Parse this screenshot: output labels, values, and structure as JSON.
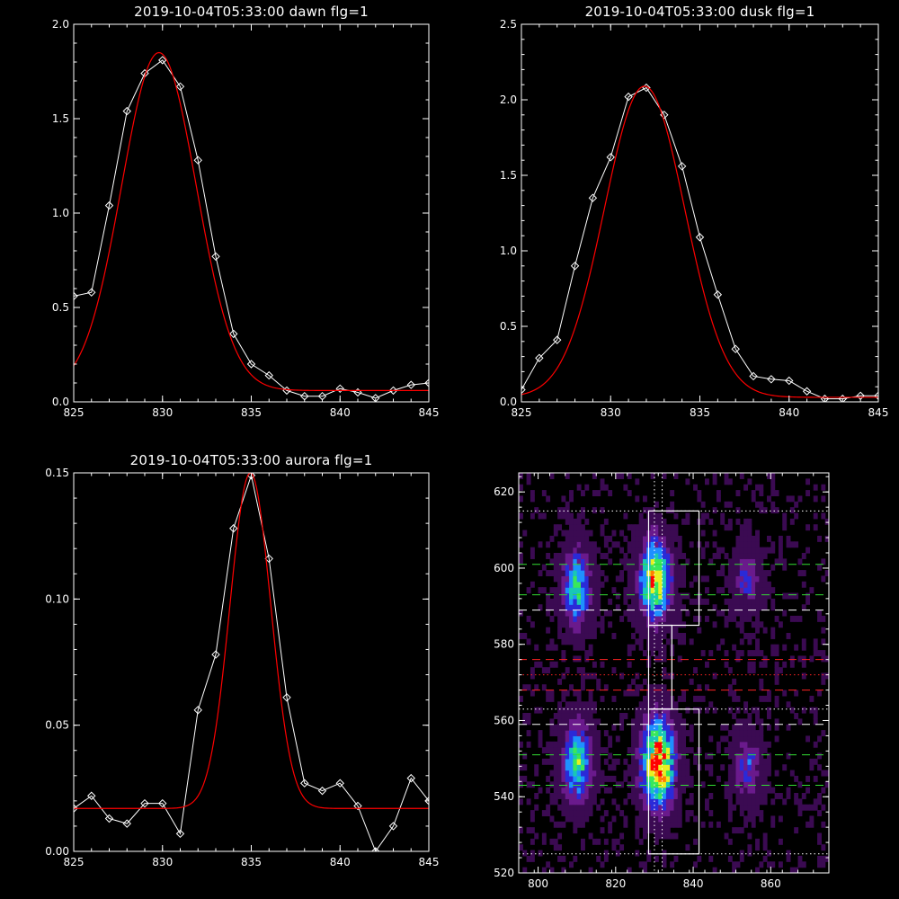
{
  "chart_data": [
    {
      "type": "line",
      "title": "2019-10-04T05:33:00 dawn flg=1",
      "xlim": [
        825,
        845
      ],
      "ylim": [
        0,
        2.0
      ],
      "xticks": [
        "825",
        "830",
        "835",
        "840",
        "845"
      ],
      "yticks": [
        "0.0",
        "0.5",
        "1.0",
        "1.5",
        "2.0"
      ],
      "series": [
        {
          "color": "#ffffff",
          "marker": "diamond",
          "x": [
            825,
            826,
            827,
            828,
            829,
            830,
            831,
            832,
            833,
            834,
            835,
            836,
            837,
            838,
            839,
            840,
            841,
            842,
            843,
            844,
            845
          ],
          "y": [
            0.56,
            0.58,
            1.04,
            1.54,
            1.74,
            1.81,
            1.67,
            1.28,
            0.77,
            0.36,
            0.2,
            0.14,
            0.06,
            0.03,
            0.03,
            0.07,
            0.05,
            0.02,
            0.06,
            0.09,
            0.1
          ]
        },
        {
          "color": "#ff0000",
          "fit": "gauss",
          "params": {
            "amp": 1.79,
            "center": 829.8,
            "sigma": 2.1,
            "offset": 0.06
          },
          "x_range": [
            825,
            845
          ]
        }
      ]
    },
    {
      "type": "line",
      "title": "2019-10-04T05:33:00 dusk flg=1",
      "xlim": [
        825,
        845
      ],
      "ylim": [
        0,
        2.5
      ],
      "xticks": [
        "825",
        "830",
        "835",
        "840",
        "845"
      ],
      "yticks": [
        "0.0",
        "0.5",
        "1.0",
        "1.5",
        "2.0",
        "2.5"
      ],
      "series": [
        {
          "color": "#ffffff",
          "marker": "diamond",
          "x": [
            825,
            826,
            827,
            828,
            829,
            830,
            831,
            832,
            833,
            834,
            835,
            836,
            837,
            838,
            839,
            840,
            841,
            842,
            843,
            844,
            845
          ],
          "y": [
            0.08,
            0.29,
            0.41,
            0.9,
            1.35,
            1.62,
            2.02,
            2.08,
            1.9,
            1.56,
            1.09,
            0.71,
            0.35,
            0.17,
            0.15,
            0.14,
            0.07,
            0.02,
            0.02,
            0.04,
            0.04
          ]
        },
        {
          "color": "#ff0000",
          "fit": "gauss",
          "params": {
            "amp": 2.06,
            "center": 831.9,
            "sigma": 2.25,
            "offset": 0.03
          },
          "x_range": [
            825,
            845
          ]
        }
      ]
    },
    {
      "type": "line",
      "title": "2019-10-04T05:33:00 aurora flg=1",
      "xlim": [
        825,
        845
      ],
      "ylim": [
        0,
        0.15
      ],
      "xticks": [
        "825",
        "830",
        "835",
        "840",
        "845"
      ],
      "yticks": [
        "0.00",
        "0.05",
        "0.10",
        "0.15"
      ],
      "series": [
        {
          "color": "#ffffff",
          "marker": "diamond",
          "x": [
            825,
            826,
            827,
            828,
            829,
            830,
            831,
            832,
            833,
            834,
            835,
            836,
            837,
            838,
            839,
            840,
            841,
            842,
            843,
            844,
            845
          ],
          "y": [
            0.017,
            0.022,
            0.013,
            0.011,
            0.019,
            0.019,
            0.007,
            0.056,
            0.078,
            0.128,
            0.149,
            0.116,
            0.061,
            0.027,
            0.024,
            0.027,
            0.018,
            0.0,
            0.01,
            0.029,
            0.02
          ]
        },
        {
          "color": "#ff0000",
          "fit": "gauss",
          "params": {
            "amp": 0.133,
            "center": 834.95,
            "sigma": 1.15,
            "offset": 0.017
          },
          "x_range": [
            825,
            845
          ]
        }
      ]
    },
    {
      "type": "heatmap",
      "title": "",
      "xlim": [
        795,
        875
      ],
      "ylim": [
        520,
        625
      ],
      "xticks": [
        "800",
        "820",
        "840",
        "860"
      ],
      "yticks": [
        "520",
        "540",
        "560",
        "580",
        "600",
        "620"
      ],
      "colormap": [
        "#000000",
        "#3b0a52",
        "#6a1a8c",
        "#2a2ad8",
        "#1e90ff",
        "#19c8b4",
        "#39e85a",
        "#e8f020",
        "#ff7f00",
        "#ff0000"
      ],
      "blobs": [
        {
          "x": 810,
          "y": 595,
          "sx": 2.4,
          "sy": 6.5,
          "amp": 0.55
        },
        {
          "x": 810,
          "y": 549,
          "sx": 2.4,
          "sy": 6.5,
          "amp": 0.62
        },
        {
          "x": 830,
          "y": 597,
          "sx": 2.6,
          "sy": 7.0,
          "amp": 0.82
        },
        {
          "x": 831,
          "y": 549,
          "sx": 2.8,
          "sy": 7.5,
          "amp": 1.0
        },
        {
          "x": 854,
          "y": 597,
          "sx": 2.2,
          "sy": 5.5,
          "amp": 0.28
        },
        {
          "x": 854,
          "y": 548,
          "sx": 2.2,
          "sy": 5.5,
          "amp": 0.3
        }
      ],
      "boxes": [
        {
          "x0": 828.5,
          "x1": 841.5,
          "y0": 585,
          "y1": 615
        },
        {
          "x0": 828.5,
          "x1": 834.5,
          "y0": 563,
          "y1": 585
        },
        {
          "x0": 828.5,
          "x1": 841.5,
          "y0": 525,
          "y1": 563
        }
      ],
      "vlines": [
        {
          "x": 830,
          "color": "#ffffff",
          "style": "dotted"
        },
        {
          "x": 832,
          "color": "#ffffff",
          "style": "dotted"
        }
      ],
      "hlines": [
        {
          "y": 615,
          "color": "#ffffff",
          "style": "dotted"
        },
        {
          "y": 601,
          "color": "#33dd33",
          "style": "dashed"
        },
        {
          "y": 593,
          "color": "#33dd33",
          "style": "dashed"
        },
        {
          "y": 589,
          "color": "#ffffff",
          "style": "dashed"
        },
        {
          "y": 576,
          "color": "#ff2222",
          "style": "dashed"
        },
        {
          "y": 572,
          "color": "#ff2222",
          "style": "dotted"
        },
        {
          "y": 568,
          "color": "#ff2222",
          "style": "dashed"
        },
        {
          "y": 563,
          "color": "#ffffff",
          "style": "dotted"
        },
        {
          "y": 559,
          "color": "#ffffff",
          "style": "dashed"
        },
        {
          "y": 551,
          "color": "#33dd33",
          "style": "dashed"
        },
        {
          "y": 543,
          "color": "#33dd33",
          "style": "dashed"
        },
        {
          "y": 525,
          "color": "#ffffff",
          "style": "dotted"
        }
      ]
    }
  ]
}
